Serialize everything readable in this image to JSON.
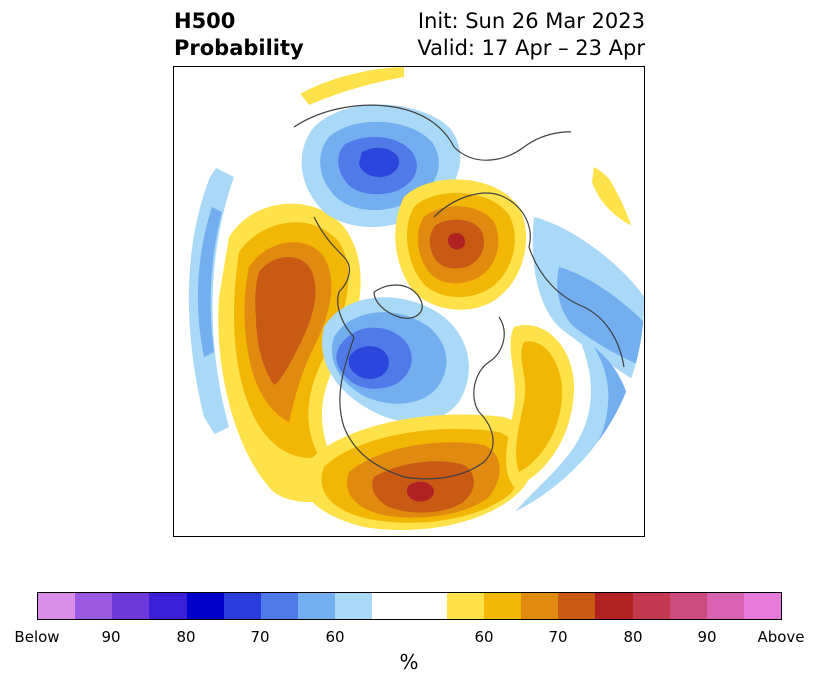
{
  "title": {
    "left_line1": "H500",
    "left_line2": "Probability",
    "right_line1": "Init: Sun 26 Mar 2023",
    "right_line2": "Valid: 17 Apr – 23 Apr"
  },
  "map": {
    "projection": "north-polar",
    "colors": {
      "below_light": "#a9d9f7",
      "below_mid": "#72aef0",
      "below_dark": "#4f7ae8",
      "below_deep": "#2c45dc",
      "above_light": "#ffe24a",
      "above_mid": "#f2b705",
      "above_dark": "#e08a10",
      "above_deep": "#c85a14",
      "above_max": "#b22222",
      "coastline": "#404040"
    }
  },
  "colorbar": {
    "colors": [
      "#d98ee8",
      "#9a5ae0",
      "#6f38d9",
      "#3a1fd6",
      "#0000cc",
      "#2a3cdb",
      "#4f7ae8",
      "#72aef0",
      "#a9d9f7",
      "#ffffff",
      "#ffffff",
      "#ffe24a",
      "#f2b705",
      "#e08a10",
      "#c85a14",
      "#b22222",
      "#c4384f",
      "#cc4c7f",
      "#d963b0",
      "#e67ad9"
    ],
    "tick_labels": [
      "Below",
      "90",
      "80",
      "70",
      "60",
      "60",
      "70",
      "80",
      "90",
      "Above"
    ],
    "unit_label": "%"
  }
}
